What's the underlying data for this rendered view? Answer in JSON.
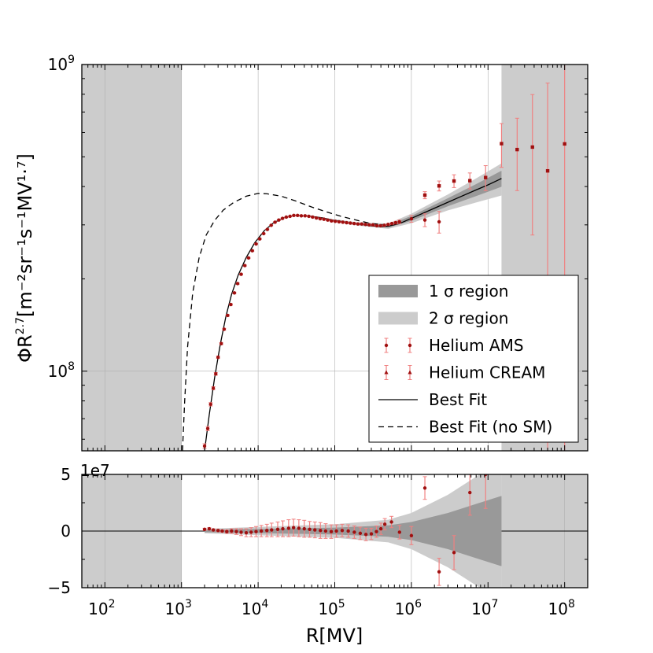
{
  "chart_data": [
    {
      "type": "line",
      "panel": "main",
      "y_scale": "log",
      "x_scale": "log",
      "ylabel_main": "ΦR",
      "ylabel_exp": "2.7",
      "ylabel_units": "[m⁻²sr⁻¹s⁻¹MV¹·⁷]",
      "ylim": [
        55000000,
        1000000000
      ],
      "xlim": [
        50,
        200000000
      ],
      "y_tick_labels": [
        {
          "base": "10",
          "exp": "9",
          "value": 1000000000
        },
        {
          "base": "10",
          "exp": "8",
          "value": 100000000
        }
      ],
      "shaded_regions": [
        [
          50,
          1000
        ],
        [
          15000000,
          200000000
        ]
      ],
      "series": [
        {
          "name": "Best Fit",
          "style": "solid",
          "x": [
            2000,
            2300,
            2700,
            3200,
            3800,
            4500,
            5500,
            7000,
            9000,
            12000,
            16000,
            22000,
            30000,
            45000,
            70000,
            100000,
            150000,
            200000,
            300000,
            400000,
            500000,
            700000,
            1000000,
            2000000,
            4000000,
            7000000,
            10000000,
            15000000
          ],
          "y": [
            55000000,
            72000000,
            95000000,
            122000000,
            151000000,
            178000000,
            206000000,
            235000000,
            262000000,
            287000000,
            305000000,
            317000000,
            322000000,
            321000000,
            316000000,
            310000000,
            305000000,
            302000000,
            298000000,
            296000000,
            297000000,
            303000000,
            315000000,
            340000000,
            367000000,
            390000000,
            405000000,
            425000000
          ]
        },
        {
          "name": "Best Fit (no SM)",
          "style": "dashed",
          "x": [
            1030,
            1100,
            1200,
            1400,
            1700,
            2100,
            2700,
            3500,
            4800,
            7000,
            10000,
            13000,
            20000,
            30000,
            50000,
            80000,
            120000,
            200000,
            300000,
            450000
          ],
          "y": [
            55000000,
            80000000,
            120000000,
            180000000,
            235000000,
            278000000,
            310000000,
            335000000,
            355000000,
            372000000,
            380000000,
            379000000,
            372000000,
            360000000,
            343000000,
            330000000,
            320000000,
            310000000,
            303000000,
            300000000
          ]
        },
        {
          "name": "Helium AMS",
          "style": "markers",
          "x": [
            2000,
            2200,
            2400,
            2600,
            2800,
            3000,
            3300,
            3600,
            4000,
            4400,
            4900,
            5400,
            6000,
            6700,
            7500,
            8400,
            9400,
            10500,
            11800,
            13200,
            14800,
            16600,
            18600,
            20800,
            23300,
            26100,
            29200,
            32700,
            36600,
            41000,
            45900,
            51400,
            57600,
            64500,
            72200,
            80900,
            90600,
            101500,
            113700,
            127400,
            142700,
            159800,
            179000,
            200500,
            224600,
            251600,
            281800,
            315600,
            353500,
            396000,
            443500,
            496700,
            556300,
            623100,
            698000,
            1000000,
            1500000,
            2300000
          ],
          "y": [
            57000000,
            65000000,
            78000000,
            88000000,
            98000000,
            111000000,
            123000000,
            137000000,
            152000000,
            165000000,
            180000000,
            193000000,
            207000000,
            221000000,
            234000000,
            247000000,
            260000000,
            270000000,
            281000000,
            290000000,
            299000000,
            306000000,
            311000000,
            315000000,
            318000000,
            320000000,
            322000000,
            322000000,
            321000000,
            321000000,
            320000000,
            318000000,
            316000000,
            314000000,
            313000000,
            311000000,
            309000000,
            308000000,
            307000000,
            306000000,
            305000000,
            304000000,
            303000000,
            302000000,
            302000000,
            301000000,
            300000000,
            300000000,
            298000000,
            298000000,
            299000000,
            301000000,
            303000000,
            305000000,
            307000000,
            314000000,
            311000000,
            307000000
          ],
          "yerr": [
            1000000,
            1000000,
            1000000,
            1000000,
            1000000,
            1000000,
            1000000,
            1000000,
            1000000,
            1000000,
            1000000,
            1000000,
            1000000,
            1000000,
            1000000,
            1000000,
            1000000,
            1000000,
            1000000,
            1000000,
            1000000,
            1000000,
            1000000,
            1000000,
            1000000,
            1000000,
            1000000,
            1000000,
            1000000,
            1000000,
            1000000,
            1000000,
            1000000,
            1000000,
            1000000,
            1000000,
            1000000,
            1000000,
            1000000,
            1000000,
            1000000,
            1000000,
            1000000,
            1000000,
            1000000,
            1000000,
            1000000,
            1000000,
            1000000,
            1000000,
            1000000,
            2000000,
            2000000,
            3000000,
            4000000,
            8000000,
            15000000,
            25000000
          ]
        },
        {
          "name": "Helium CREAM",
          "style": "markers",
          "x": [
            1500000,
            2300000,
            3600000,
            5800000,
            9300000,
            15000000,
            24000000,
            38000000,
            60000000,
            100000000
          ],
          "y": [
            375000000,
            402000000,
            417000000,
            418000000,
            428000000,
            552000000,
            528000000,
            538000000,
            450000000,
            551000000
          ],
          "yerr": [
            10000000,
            15000000,
            20000000,
            25000000,
            40000000,
            90000000,
            140000000,
            260000000,
            420000000,
            520000000
          ]
        }
      ],
      "bands": [
        {
          "name": "1 σ region",
          "color": "#999999",
          "x": [
            100000,
            200000,
            500000,
            1000000,
            3000000,
            7000000,
            15000000
          ],
          "half_width_rel": [
            0.005,
            0.006,
            0.01,
            0.018,
            0.03,
            0.045,
            0.06
          ]
        },
        {
          "name": "2 σ region",
          "color": "#cccccc",
          "x": [
            100000,
            200000,
            500000,
            1000000,
            3000000,
            7000000,
            15000000
          ],
          "half_width_rel": [
            0.01,
            0.012,
            0.02,
            0.036,
            0.06,
            0.09,
            0.12
          ]
        }
      ],
      "legend": {
        "position": "lower-right",
        "entries": [
          "1 σ region",
          "2 σ region",
          "Helium AMS",
          "Helium CREAM",
          "Best Fit",
          "Best Fit (no SM)"
        ]
      }
    },
    {
      "type": "scatter",
      "panel": "residuals",
      "ylim": [
        -50000000,
        50000000
      ],
      "y_multiplier": "1e7",
      "y_tick_labels": [
        "5",
        "0",
        "−5"
      ],
      "y_tick_values": [
        50000000,
        0,
        -50000000
      ],
      "xlabel": "R[MV]",
      "x_tick_labels": [
        {
          "base": "10",
          "exp": "2",
          "value": 100
        },
        {
          "base": "10",
          "exp": "3",
          "value": 1000
        },
        {
          "base": "10",
          "exp": "4",
          "value": 10000
        },
        {
          "base": "10",
          "exp": "5",
          "value": 100000
        },
        {
          "base": "10",
          "exp": "6",
          "value": 1000000
        },
        {
          "base": "10",
          "exp": "7",
          "value": 10000000
        },
        {
          "base": "10",
          "exp": "8",
          "value": 100000000
        }
      ],
      "residuals_ams": {
        "x": [
          2000,
          2300,
          2600,
          3000,
          3400,
          3900,
          4500,
          5200,
          6000,
          7000,
          8100,
          9400,
          11000,
          13000,
          15000,
          18000,
          21000,
          25000,
          29000,
          34000,
          40000,
          47000,
          55000,
          65000,
          76000,
          90000,
          105000,
          125000,
          150000,
          180000,
          215000,
          255000,
          300000,
          350000,
          400000,
          450000,
          550000
        ],
        "y": [
          1500000,
          2000000,
          1000000,
          500000,
          0,
          -500000,
          0,
          -500000,
          -1000000,
          -1500000,
          -1000000,
          -500000,
          0,
          500000,
          1000000,
          1500000,
          2000000,
          2500000,
          3000000,
          2500000,
          2000000,
          1500000,
          1000000,
          500000,
          0,
          -500000,
          0,
          500000,
          0,
          -1000000,
          -2000000,
          -3000000,
          -2500000,
          -500000,
          2000000,
          6000000,
          8000000
        ],
        "yerr": [
          1000000,
          1000000,
          1000000,
          1000000,
          1000000,
          1500000,
          2000000,
          2500000,
          3000000,
          3500000,
          4000000,
          4500000,
          5000000,
          5500000,
          6000000,
          6500000,
          7000000,
          7500000,
          7500000,
          7500000,
          7500000,
          7000000,
          7000000,
          7000000,
          6500000,
          6000000,
          5500000,
          5500000,
          5500000,
          5500000,
          5500000,
          5500000,
          5000000,
          5000000,
          5000000,
          5000000,
          5000000
        ]
      },
      "residuals_cream": {
        "x": [
          1500000,
          2300000,
          3600000,
          5800000,
          9300000,
          700000,
          1000000
        ],
        "y": [
          38000000,
          -36000000,
          -19000000,
          34000000,
          50000000,
          -1000000,
          -4000000
        ],
        "yerr": [
          10000000,
          12000000,
          15000000,
          20000000,
          30000000,
          6000000,
          8000000
        ]
      },
      "bands": [
        {
          "name": "1 σ region",
          "color": "#999999",
          "x": [
            2000,
            100000,
            500000,
            1000000,
            3000000,
            7000000,
            15000000
          ],
          "half": [
            1000000,
            3000000,
            5000000,
            8000000,
            16000000,
            24000000,
            31000000
          ]
        },
        {
          "name": "2 σ region",
          "color": "#cccccc",
          "x": [
            2000,
            100000,
            500000,
            1000000,
            3000000,
            7000000,
            15000000
          ],
          "half": [
            2000000,
            6000000,
            10000000,
            16000000,
            32000000,
            48000000,
            62000000
          ]
        }
      ]
    }
  ]
}
